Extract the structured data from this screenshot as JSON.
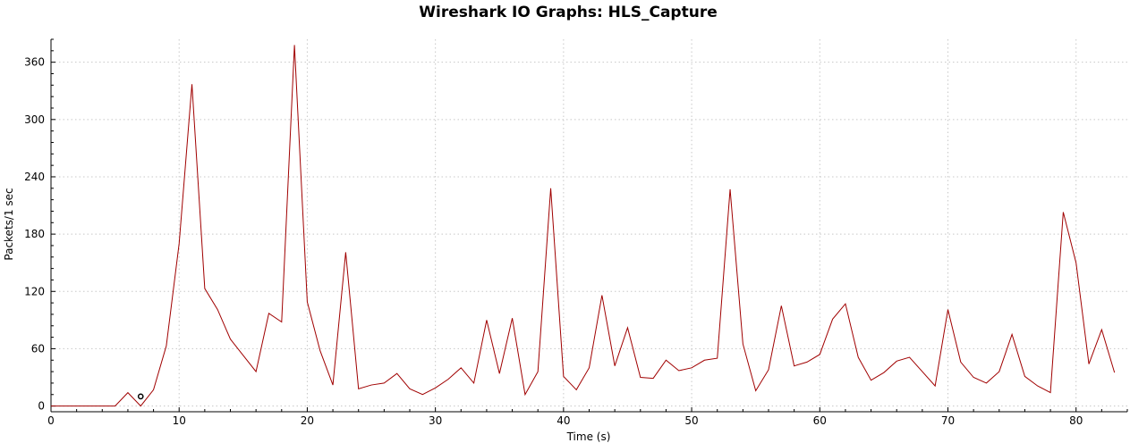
{
  "chart_data": {
    "type": "line",
    "title": "Wireshark IO Graphs: HLS_Capture",
    "xlabel": "Time (s)",
    "ylabel": "Packets/1 sec",
    "xlim": [
      0,
      84
    ],
    "ylim": [
      -6,
      384
    ],
    "xticks": [
      0,
      10,
      20,
      30,
      40,
      50,
      60,
      70,
      80
    ],
    "yticks": [
      0,
      60,
      120,
      180,
      240,
      300,
      360
    ],
    "grid": true,
    "line_color": "#a00000",
    "series": [
      {
        "x": [
          0,
          1,
          2,
          3,
          4,
          5,
          6,
          7,
          8,
          9,
          10,
          11,
          12,
          13,
          14,
          15,
          16,
          17,
          18,
          19,
          20,
          21,
          22,
          23,
          24,
          25,
          26,
          27,
          28,
          29,
          30,
          31,
          32,
          33,
          34,
          35,
          36,
          37,
          38,
          39,
          40,
          41,
          42,
          43,
          44,
          45,
          46,
          47,
          48,
          49,
          50,
          51,
          52,
          53,
          54,
          55,
          56,
          57,
          58,
          59,
          60,
          61,
          62,
          63,
          64,
          65,
          66,
          67,
          68,
          69,
          70,
          71,
          72,
          73,
          74,
          75,
          76,
          77,
          78,
          79,
          80,
          81,
          82,
          83
        ],
        "values": [
          0,
          0,
          0,
          0,
          0,
          0,
          14,
          0,
          17,
          63,
          170,
          337,
          123,
          101,
          70,
          53,
          36,
          97,
          88,
          378,
          109,
          58,
          22,
          161,
          18,
          22,
          24,
          34,
          18,
          12,
          19,
          28,
          40,
          24,
          90,
          34,
          92,
          12,
          36,
          228,
          31,
          17,
          40,
          116,
          42,
          82,
          30,
          29,
          48,
          37,
          40,
          48,
          50,
          227,
          65,
          16,
          38,
          105,
          42,
          46,
          54,
          91,
          107,
          51,
          27,
          35,
          47,
          51,
          36,
          21,
          101,
          46,
          30,
          24,
          36,
          75,
          31,
          21,
          14,
          203,
          150,
          44,
          80,
          35
        ]
      }
    ],
    "annotations": [
      {
        "type": "marker",
        "shape": "circle",
        "x": 7,
        "y": 10
      }
    ]
  }
}
